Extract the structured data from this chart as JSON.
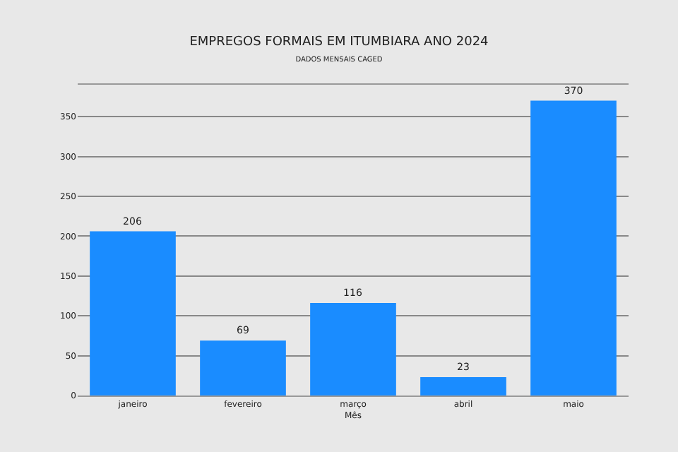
{
  "chart_data": {
    "type": "bar",
    "title": "EMPREGOS FORMAIS EM ITUMBIARA ANO 2024",
    "subtitle": "DADOS MENSAIS CAGED",
    "xlabel": "Mês",
    "categories": [
      "janeiro",
      "fevereiro",
      "março",
      "abril",
      "maio"
    ],
    "values": [
      206,
      69,
      116,
      23,
      370
    ],
    "color": "#1a8cff",
    "data_labels": true,
    "ylim": [
      0,
      390
    ],
    "yticks": [
      0,
      50,
      100,
      150,
      200,
      250,
      300,
      350
    ],
    "grid": "y"
  }
}
